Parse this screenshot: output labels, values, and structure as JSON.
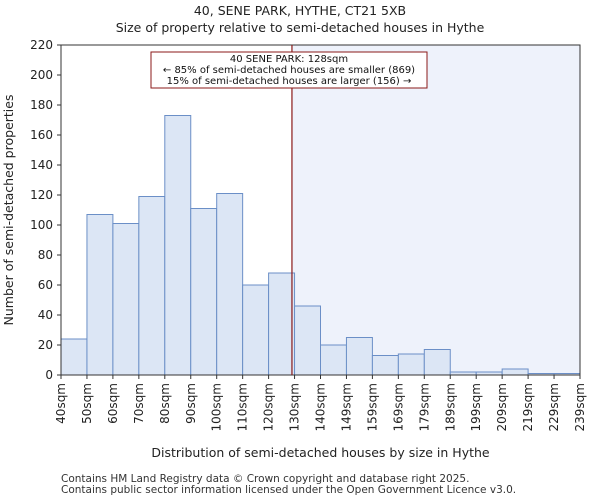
{
  "chart_data": {
    "type": "histogram",
    "title": "40, SENE PARK, HYTHE, CT21 5XB",
    "subtitle": "Size of property relative to semi-detached houses in Hythe",
    "xlabel": "Distribution of semi-detached houses by size in Hythe",
    "ylabel": "Number of semi-detached properties",
    "categories": [
      "40sqm",
      "50sqm",
      "60sqm",
      "70sqm",
      "80sqm",
      "90sqm",
      "100sqm",
      "110sqm",
      "120sqm",
      "130sqm",
      "140sqm",
      "149sqm",
      "159sqm",
      "169sqm",
      "179sqm",
      "189sqm",
      "199sqm",
      "209sqm",
      "219sqm",
      "229sqm",
      "239sqm"
    ],
    "values": [
      24,
      107,
      101,
      119,
      173,
      111,
      121,
      60,
      68,
      46,
      20,
      25,
      13,
      14,
      17,
      2,
      2,
      4,
      1,
      1
    ],
    "ylim": [
      0,
      220
    ],
    "yticks": [
      0,
      20,
      40,
      60,
      80,
      100,
      120,
      140,
      160,
      180,
      200,
      220
    ],
    "property_bin_position": 8.9,
    "annotation": {
      "line1": "40 SENE PARK: 128sqm",
      "line2": "← 85% of semi-detached houses are smaller (869)",
      "line3": "15% of semi-detached houses are larger (156) →"
    },
    "colors": {
      "bar_fill": "#dce6f5",
      "bar_edge": "#6b8fc7",
      "highlight_bg": "#eef2fb",
      "marker": "#8b1a1a"
    }
  },
  "footer": {
    "line1": "Contains HM Land Registry data © Crown copyright and database right 2025.",
    "line2": "Contains public sector information licensed under the Open Government Licence v3.0."
  }
}
